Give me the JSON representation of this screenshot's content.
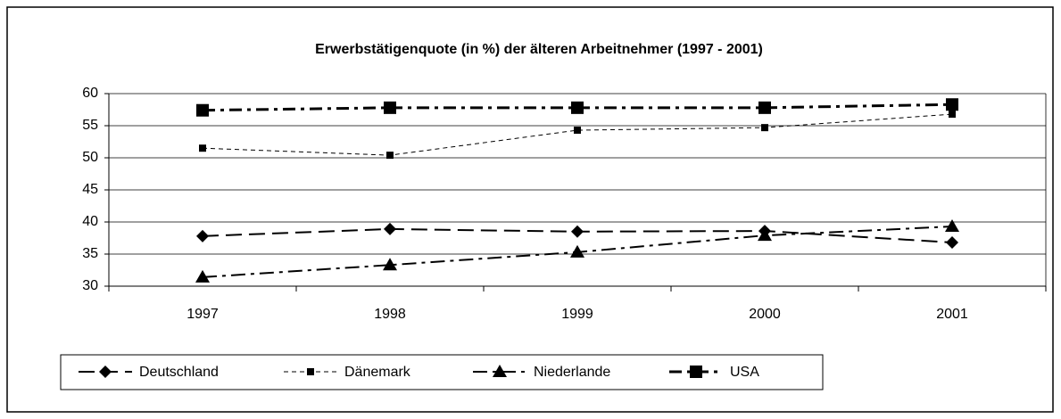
{
  "chart_data": {
    "type": "line",
    "title": "Erwerbstätigenquote (in %) der älteren Arbeitnehmer (1997 - 2001)",
    "categories": [
      "1997",
      "1998",
      "1999",
      "2000",
      "2001"
    ],
    "series": [
      {
        "name": "Deutschland",
        "color": "#000000",
        "dash": "18 8",
        "width": 2,
        "marker": "diamond",
        "values": [
          37.8,
          38.9,
          38.5,
          38.6,
          36.8
        ]
      },
      {
        "name": "Dänemark",
        "color": "#000000",
        "dash": "5 4",
        "width": 1,
        "marker": "square",
        "values": [
          51.5,
          50.4,
          54.3,
          54.7,
          56.8
        ]
      },
      {
        "name": "Niederlande",
        "color": "#000000",
        "dash": "16 6 4 6",
        "width": 2,
        "marker": "triangle",
        "values": [
          31.4,
          33.3,
          35.3,
          37.9,
          39.3
        ]
      },
      {
        "name": "USA",
        "color": "#000000",
        "dash": "14 6 4 6",
        "width": 3,
        "marker": "bigsquare",
        "values": [
          57.4,
          57.8,
          57.8,
          57.8,
          58.3
        ]
      }
    ],
    "ylim": [
      30,
      60
    ],
    "yticks": [
      30,
      35,
      40,
      45,
      50,
      55,
      60
    ],
    "grid": true,
    "legend": "bottom"
  }
}
